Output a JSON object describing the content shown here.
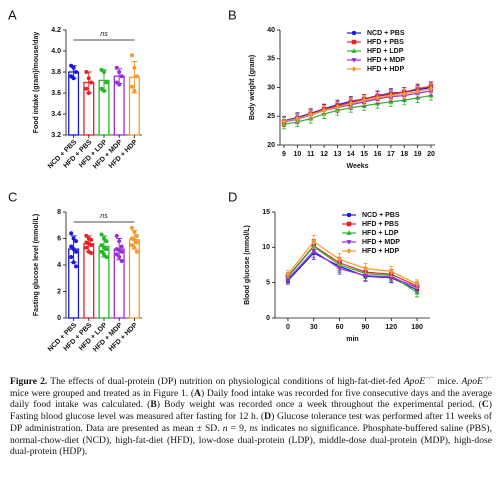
{
  "chart_data": [
    {
      "panel": "A",
      "type": "bar",
      "ylabel": "Food intake (gram)/mouse/day",
      "categories": [
        "NCD + PBS",
        "HFD + PBS",
        "HFD + LDP",
        "HFD + MDP",
        "HFD + HDP"
      ],
      "values": [
        3.8,
        3.7,
        3.72,
        3.76,
        3.75
      ],
      "errors": [
        0.06,
        0.1,
        0.1,
        0.07,
        0.15
      ],
      "colors": [
        "#1a1ad6",
        "#e32227",
        "#2bb52b",
        "#9a2fd8",
        "#f39a2e"
      ],
      "points": [
        [
          3.86,
          3.84,
          3.8,
          3.76,
          3.74
        ],
        [
          3.8,
          3.74,
          3.7,
          3.64,
          3.6
        ],
        [
          3.82,
          3.8,
          3.7,
          3.64,
          3.62
        ],
        [
          3.84,
          3.8,
          3.76,
          3.7,
          3.68
        ],
        [
          3.96,
          3.84,
          3.76,
          3.66,
          3.62
        ]
      ],
      "annotation": "ns",
      "ylim": [
        3.2,
        4.2
      ],
      "yticks": [
        3.2,
        3.4,
        3.6,
        3.8,
        {
          "value": 4,
          "label": "4.0"
        },
        4.2
      ]
    },
    {
      "panel": "B",
      "type": "line",
      "ylabel": "Body weight (gram)",
      "xlabel": "Weeks",
      "x": [
        9,
        10,
        11,
        12,
        13,
        14,
        15,
        16,
        17,
        18,
        19,
        20
      ],
      "series": [
        {
          "name": "NCD + PBS",
          "color": "#1a1ad6",
          "marker": "circle",
          "values": [
            24.2,
            24.8,
            25.5,
            26.3,
            27.0,
            27.6,
            28.0,
            28.6,
            29.0,
            29.2,
            29.6,
            30.0
          ],
          "errors": [
            0.8,
            0.8,
            0.8,
            0.8,
            0.8,
            0.8,
            0.8,
            0.8,
            0.8,
            0.8,
            0.8,
            0.8
          ]
        },
        {
          "name": "HFD + PBS",
          "color": "#e32227",
          "marker": "square",
          "values": [
            24.0,
            24.6,
            25.4,
            26.2,
            26.8,
            27.4,
            28.0,
            28.5,
            28.8,
            29.2,
            29.8,
            30.2
          ],
          "errors": [
            0.8,
            0.8,
            0.8,
            0.8,
            0.8,
            0.8,
            0.8,
            0.8,
            0.8,
            0.8,
            0.8,
            0.8
          ]
        },
        {
          "name": "HFD + LDP",
          "color": "#2bb52b",
          "marker": "triangle-up",
          "values": [
            23.6,
            24.0,
            24.6,
            25.4,
            26.0,
            26.5,
            26.8,
            27.2,
            27.5,
            27.8,
            28.2,
            28.6
          ],
          "errors": [
            0.8,
            0.8,
            0.8,
            0.8,
            0.8,
            0.8,
            0.8,
            0.8,
            0.8,
            0.8,
            0.8,
            0.8
          ]
        },
        {
          "name": "HFD + MDP",
          "color": "#9a2fd8",
          "marker": "triangle-down",
          "values": [
            24.0,
            24.5,
            25.2,
            26.0,
            26.5,
            27.0,
            27.5,
            28.0,
            28.4,
            28.6,
            29.0,
            29.4
          ],
          "errors": [
            0.8,
            0.8,
            0.8,
            0.8,
            0.8,
            0.8,
            0.8,
            0.8,
            0.8,
            0.8,
            0.8,
            0.8
          ]
        },
        {
          "name": "HFD + HDP",
          "color": "#f39a2e",
          "marker": "diamond",
          "values": [
            24.1,
            24.6,
            25.3,
            26.0,
            26.6,
            27.2,
            27.8,
            28.2,
            28.6,
            28.9,
            29.3,
            29.8
          ],
          "errors": [
            0.8,
            0.8,
            0.8,
            0.8,
            0.8,
            0.8,
            0.8,
            0.8,
            0.8,
            0.8,
            0.8,
            0.8
          ]
        }
      ],
      "xlim": [
        8.7,
        20.3
      ],
      "xticks": [
        9,
        10,
        11,
        12,
        13,
        14,
        15,
        16,
        17,
        18,
        19,
        20
      ],
      "ylim": [
        20,
        40
      ],
      "yticks": [
        20,
        25,
        30,
        35,
        40
      ],
      "legend": "upper right"
    },
    {
      "panel": "C",
      "type": "bar",
      "ylabel": "Fasting glucose level (mmol/L)",
      "categories": [
        "NCD + PBS",
        "HFD + PBS",
        "HFD + LDP",
        "HFD + MDP",
        "HFD + HDP"
      ],
      "values": [
        5.2,
        5.6,
        5.4,
        5.2,
        5.9
      ],
      "errors": [
        1.0,
        0.6,
        0.8,
        0.8,
        0.7
      ],
      "colors": [
        "#1a1ad6",
        "#e32227",
        "#2bb52b",
        "#9a2fd8",
        "#f39a2e"
      ],
      "points": [
        [
          6.4,
          6.0,
          5.8,
          5.4,
          5.2,
          5.0,
          4.6,
          4.2,
          3.9
        ],
        [
          6.2,
          6.0,
          5.9,
          5.7,
          5.6,
          5.5,
          5.3,
          5.0,
          4.9
        ],
        [
          6.3,
          6.0,
          5.8,
          5.5,
          5.3,
          5.2,
          5.0,
          4.8,
          4.6
        ],
        [
          6.2,
          5.8,
          5.4,
          5.2,
          5.1,
          5.0,
          4.8,
          4.6,
          4.3
        ],
        [
          6.8,
          6.5,
          6.2,
          6.0,
          5.9,
          5.7,
          5.5,
          5.3,
          5.0
        ]
      ],
      "annotation": "ns",
      "ylim": [
        0,
        8
      ],
      "yticks": [
        0,
        2,
        4,
        6,
        8
      ]
    },
    {
      "panel": "D",
      "type": "line",
      "ylabel": "Blood glucose (mmol/L)",
      "xlabel": "min",
      "categories": [
        "0",
        "30",
        "60",
        "90",
        "120",
        "180"
      ],
      "series": [
        {
          "name": "NCD + PBS",
          "color": "#1a1ad6",
          "marker": "circle",
          "values": [
            5.3,
            9.2,
            7.3,
            5.9,
            5.7,
            4.0
          ],
          "errors": [
            0.5,
            0.9,
            0.8,
            0.7,
            0.7,
            0.6
          ]
        },
        {
          "name": "HFD + PBS",
          "color": "#e32227",
          "marker": "square",
          "values": [
            5.9,
            10.2,
            7.8,
            6.5,
            6.2,
            4.5
          ],
          "errors": [
            0.5,
            0.9,
            0.8,
            0.7,
            0.7,
            0.6
          ]
        },
        {
          "name": "HFD + LDP",
          "color": "#2bb52b",
          "marker": "triangle-up",
          "values": [
            5.8,
            10.1,
            7.5,
            6.3,
            6.0,
            3.6
          ],
          "errors": [
            0.5,
            0.9,
            0.8,
            0.7,
            0.7,
            0.6
          ]
        },
        {
          "name": "HFD + MDP",
          "color": "#9a2fd8",
          "marker": "triangle-down",
          "values": [
            5.5,
            9.5,
            7.0,
            6.0,
            5.8,
            4.3
          ],
          "errors": [
            0.5,
            0.9,
            0.8,
            0.7,
            0.7,
            0.6
          ]
        },
        {
          "name": "HFD + HDP",
          "color": "#f39a2e",
          "marker": "diamond",
          "values": [
            6.2,
            10.8,
            8.3,
            7.0,
            6.6,
            4.8
          ],
          "errors": [
            0.5,
            0.9,
            0.8,
            0.7,
            0.7,
            0.6
          ]
        }
      ],
      "ylim": [
        0,
        15
      ],
      "yticks": [
        0,
        5,
        10,
        15
      ],
      "legend": "upper right"
    }
  ],
  "caption": [
    "Figure 2.",
    " The effects of dual-protein (DP) nutrition on physiological conditions of high-fat-diet-fed ",
    "ApoE",
    "−/−",
    " mice. ",
    "ApoE",
    "−/−",
    " mice were grouped and treated as in Figure 1. (",
    "A",
    ") Daily food intake was recorded for five consecutive days and the average daily food intake was calculated. (",
    "B",
    ") Body weight was recorded once a week throughout the experimental period. (",
    "C",
    ") Fasting blood glucose level was measured after fasting for 12 h. (",
    "D",
    ") Glucose tolerance test was performed after 11 weeks of DP administration. Data are presented as mean ± SD. ",
    "n",
    " = 9, ",
    "ns",
    " indicates no significance. Phosphate-buffered saline (PBS), normal-chow-diet (NCD), high-fat-diet (HFD), low-dose dual-protein (LDP), middle-dose dual-protein (MDP), high-dose dual-protein (HDP)."
  ]
}
